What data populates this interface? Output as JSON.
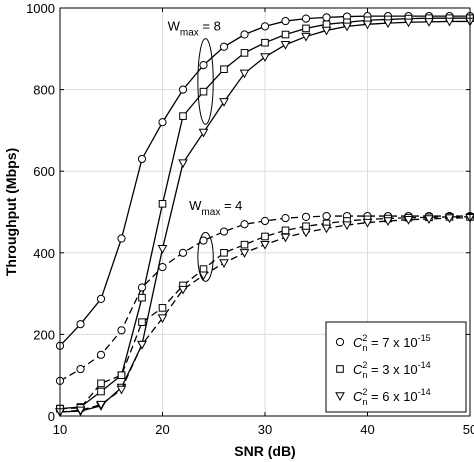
{
  "chart_data": {
    "type": "line",
    "xlabel": "SNR (dB)",
    "ylabel": "Throughput (Mbps)",
    "xlim": [
      10,
      50
    ],
    "ylim": [
      0,
      1000
    ],
    "xticks": [
      10,
      20,
      30,
      40,
      50
    ],
    "yticks": [
      0,
      200,
      400,
      600,
      800,
      1000
    ],
    "grid": true,
    "legend_position": "bottom-right",
    "x": [
      10,
      12,
      14,
      16,
      18,
      20,
      22,
      24,
      26,
      28,
      30,
      32,
      34,
      36,
      38,
      40,
      42,
      44,
      46,
      48,
      50
    ],
    "series": [
      {
        "legend": "7e-15",
        "marker": "circle",
        "dash": "solid",
        "values": [
          172,
          225,
          287,
          435,
          630,
          720,
          800,
          860,
          905,
          935,
          955,
          968,
          974,
          977,
          979,
          980,
          980,
          980,
          980,
          980,
          980
        ]
      },
      {
        "legend": "3e-14",
        "marker": "square",
        "dash": "solid",
        "values": [
          18,
          22,
          60,
          100,
          290,
          520,
          735,
          795,
          850,
          890,
          915,
          935,
          950,
          960,
          965,
          970,
          972,
          974,
          975,
          975,
          975
        ]
      },
      {
        "legend": "6e-14",
        "marker": "triangle",
        "dash": "solid",
        "values": [
          10,
          12,
          25,
          70,
          175,
          410,
          620,
          695,
          770,
          840,
          880,
          910,
          930,
          945,
          955,
          960,
          963,
          965,
          966,
          967,
          967
        ]
      },
      {
        "legend": "7e-15",
        "marker": "circle",
        "dash": "dashed",
        "values": [
          86,
          115,
          150,
          210,
          315,
          365,
          400,
          430,
          452,
          470,
          478,
          485,
          488,
          490,
          490,
          490,
          490,
          490,
          490,
          490,
          490
        ]
      },
      {
        "legend": "3e-14",
        "marker": "square",
        "dash": "dashed",
        "values": [
          18,
          20,
          80,
          100,
          230,
          265,
          320,
          360,
          400,
          420,
          440,
          455,
          465,
          472,
          478,
          482,
          484,
          486,
          487,
          488,
          488
        ]
      },
      {
        "legend": "6e-14",
        "marker": "triangle",
        "dash": "dashed",
        "values": [
          10,
          14,
          28,
          65,
          175,
          240,
          310,
          345,
          375,
          400,
          420,
          438,
          450,
          460,
          468,
          474,
          478,
          481,
          483,
          485,
          486
        ]
      }
    ],
    "annotations": [
      {
        "text_main": "W",
        "text_sub": "max",
        "text_rest": " = 8",
        "x": 20.5,
        "y": 945
      },
      {
        "text_main": "W",
        "text_sub": "max",
        "text_rest": " = 4",
        "x": 22.6,
        "y": 505
      }
    ],
    "ellipses": [
      {
        "cx": 24.2,
        "cy": 820,
        "rx": 0.75,
        "ry": 105
      },
      {
        "cx": 24.2,
        "cy": 390,
        "rx": 0.75,
        "ry": 60
      }
    ],
    "legend_entries": [
      {
        "marker": "circle",
        "coef": "7",
        "exponent": "-15"
      },
      {
        "marker": "square",
        "coef": "3",
        "exponent": "-14"
      },
      {
        "marker": "triangle",
        "coef": "6",
        "exponent": "-14"
      }
    ],
    "legend_label_symbol": "C",
    "legend_label_sup": "2",
    "legend_label_sub": "n",
    "legend_label_eq": " = ",
    "legend_label_times": " x 10"
  }
}
